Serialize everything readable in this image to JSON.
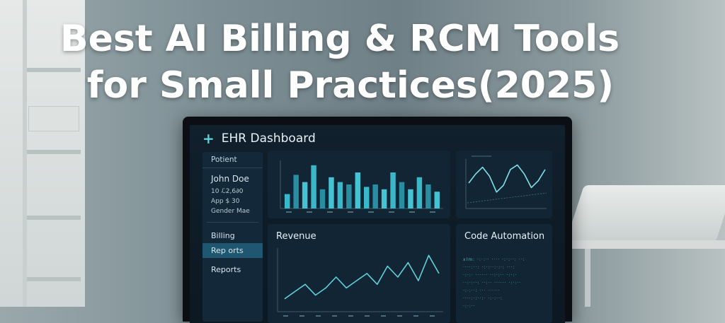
{
  "headline": {
    "line1": "Best AI Billing & RCM Tools",
    "line2": "for Small Practices(2025)"
  },
  "dashboard": {
    "title": "EHR Dashboard",
    "icon": "plus-icon"
  },
  "sidebar": {
    "header": "Potient",
    "patient_name": "John Doe",
    "fields": [
      "10   ℒ2,6∂0",
      "App  $ 30",
      "Gender  Mae"
    ],
    "items": [
      {
        "label": "Billing",
        "active": false
      },
      {
        "label": "Rep orts",
        "active": true
      },
      {
        "label": "Reports",
        "active": false
      }
    ]
  },
  "revenue_panel": {
    "title": "Revenue"
  },
  "code_panel": {
    "title": "Code Automation",
    "lines": [
      "xlm: ·:·:··  ····  ·:·:··:  ··:",
      "····:··:  ·:·:··:·:·:  ···:",
      "·:·:·  ······  ··:·:··  ·:·:·",
      "··:·:··:  ··:··  ······  ·:·:··",
      "·:·:··:  ···  ······",
      "····:·:··:·  ·:·:··:",
      "·:·:··"
    ]
  },
  "colors": {
    "accent": "#5fd0d8",
    "bar": "#3ab7c8",
    "panel": "#112535",
    "active": "#1f5670"
  },
  "chart_data": [
    {
      "type": "bar",
      "title": "",
      "values": [
        6,
        14,
        11,
        18,
        8,
        13,
        11,
        10,
        15,
        9,
        10,
        8,
        15,
        11,
        8,
        13,
        10,
        7
      ]
    },
    {
      "type": "line",
      "title": "",
      "values": [
        0,
        4,
        7,
        3,
        -4,
        -1,
        6,
        8,
        4,
        -2,
        1,
        6
      ]
    },
    {
      "type": "line",
      "title": "Revenue",
      "values": [
        2,
        4,
        6,
        3,
        5,
        8,
        5,
        7,
        9,
        6,
        11,
        8,
        12,
        7,
        14,
        9
      ]
    }
  ]
}
